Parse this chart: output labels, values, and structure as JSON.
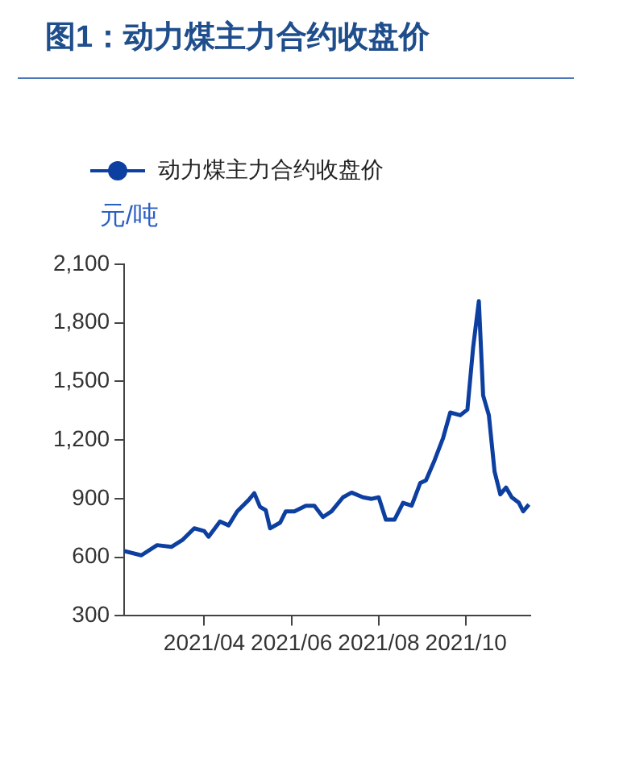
{
  "chart_data": {
    "type": "line",
    "title": "图1：动力煤主力合约收盘价",
    "ylabel": "元/吨",
    "legend": "top left",
    "grid": false,
    "marker": "none",
    "line_style": "solid",
    "xlim": [
      "2021-02-04",
      "2021-11-15"
    ],
    "xticks": [
      {
        "value": "2021-04-01",
        "label": "2021/04"
      },
      {
        "value": "2021-06-01",
        "label": "2021/06"
      },
      {
        "value": "2021-08-01",
        "label": "2021/08"
      },
      {
        "value": "2021-10-01",
        "label": "2021/10"
      }
    ],
    "ylim": [
      300,
      2100
    ],
    "yticks": [
      300,
      600,
      900,
      {
        "value": 1200,
        "label": "1,200"
      },
      {
        "value": 1500,
        "label": "1,500"
      },
      {
        "value": 1800,
        "label": "1,800"
      },
      {
        "value": 2100,
        "label": "2,100"
      }
    ],
    "x": [
      "2021-02-04",
      "2021-02-16",
      "2021-02-27",
      "2021-03-09",
      "2021-03-17",
      "2021-03-25",
      "2021-04-01",
      "2021-04-04",
      "2021-04-12",
      "2021-04-18",
      "2021-04-24",
      "2021-05-02",
      "2021-05-06",
      "2021-05-10",
      "2021-05-14",
      "2021-05-17",
      "2021-05-24",
      "2021-05-28",
      "2021-06-03",
      "2021-06-11",
      "2021-06-17",
      "2021-06-23",
      "2021-06-29",
      "2021-07-07",
      "2021-07-13",
      "2021-07-21",
      "2021-07-27",
      "2021-08-01",
      "2021-08-06",
      "2021-08-12",
      "2021-08-18",
      "2021-08-24",
      "2021-08-30",
      "2021-09-03",
      "2021-09-09",
      "2021-09-15",
      "2021-09-20",
      "2021-09-27",
      "2021-10-02",
      "2021-10-06",
      "2021-10-10",
      "2021-10-13",
      "2021-10-17",
      "2021-10-21",
      "2021-10-25",
      "2021-10-29",
      "2021-11-02",
      "2021-11-07",
      "2021-11-10",
      "2021-11-14"
    ],
    "series": [
      {
        "name": "动力煤主力合约收盘价",
        "color": "#0d3fa0",
        "values": [
          632,
          610,
          662,
          653,
          690,
          748,
          734,
          705,
          783,
          763,
          835,
          893,
          928,
          858,
          841,
          748,
          777,
          835,
          835,
          864,
          864,
          806,
          835,
          907,
          931,
          907,
          899,
          907,
          792,
          792,
          879,
          864,
          980,
          994,
          1096,
          1211,
          1341,
          1327,
          1356,
          1674,
          1911,
          1428,
          1327,
          1038,
          922,
          957,
          907,
          879,
          835,
          870
        ]
      }
    ]
  }
}
